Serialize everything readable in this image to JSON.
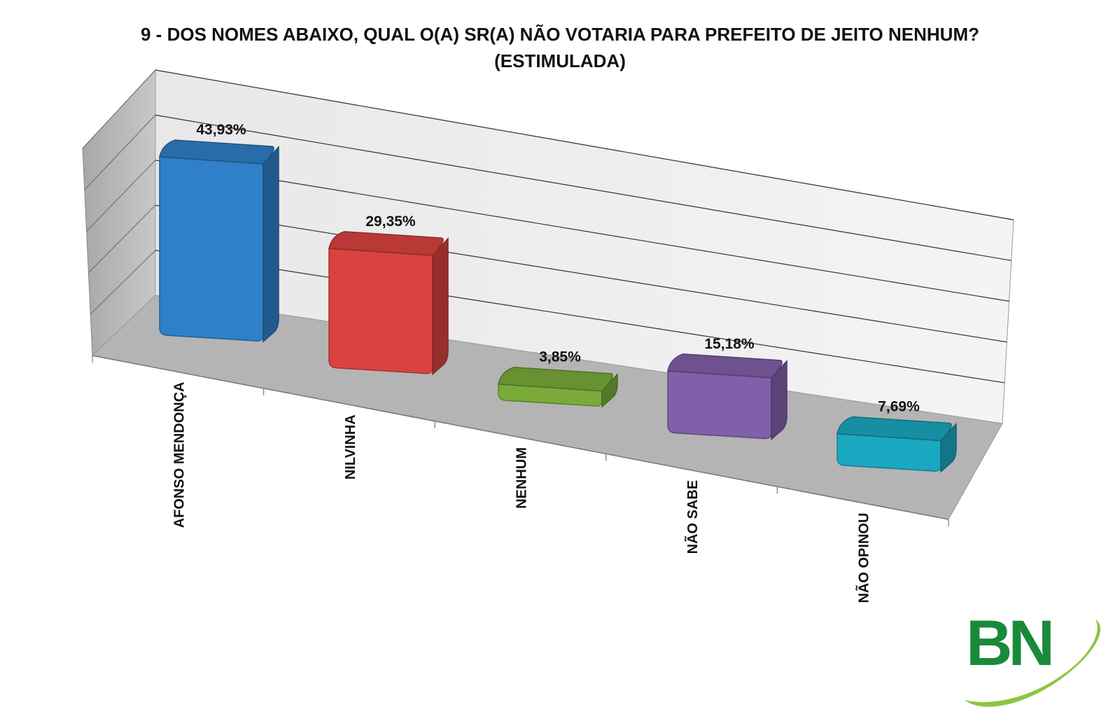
{
  "chart_data": {
    "type": "bar",
    "title_lines": [
      "9 -  DOS NOMES ABAIXO, QUAL O(A) SR(A) NÃO VOTARIA PARA PREFEITO DE JEITO NENHUM?",
      "(ESTIMULADA)"
    ],
    "categories": [
      "AFONSO MENDONÇA",
      "NILVINHA",
      "NENHUM",
      "NÃO SABE",
      "NÃO OPINOU"
    ],
    "values": [
      43.93,
      29.35,
      3.85,
      15.18,
      7.69
    ],
    "value_labels": [
      "43,93%",
      "29,35%",
      "3,85%",
      "15,18%",
      "7,69%"
    ],
    "colors": [
      "#2f80c8",
      "#d9433f",
      "#7aab3a",
      "#8060a8",
      "#1aa8c0"
    ],
    "ylim": [
      0,
      50
    ],
    "grid": true,
    "legend": "none"
  },
  "logo": {
    "text": "BN",
    "color": "#1a8a3a",
    "swoosh_color": "#8cc63f"
  }
}
